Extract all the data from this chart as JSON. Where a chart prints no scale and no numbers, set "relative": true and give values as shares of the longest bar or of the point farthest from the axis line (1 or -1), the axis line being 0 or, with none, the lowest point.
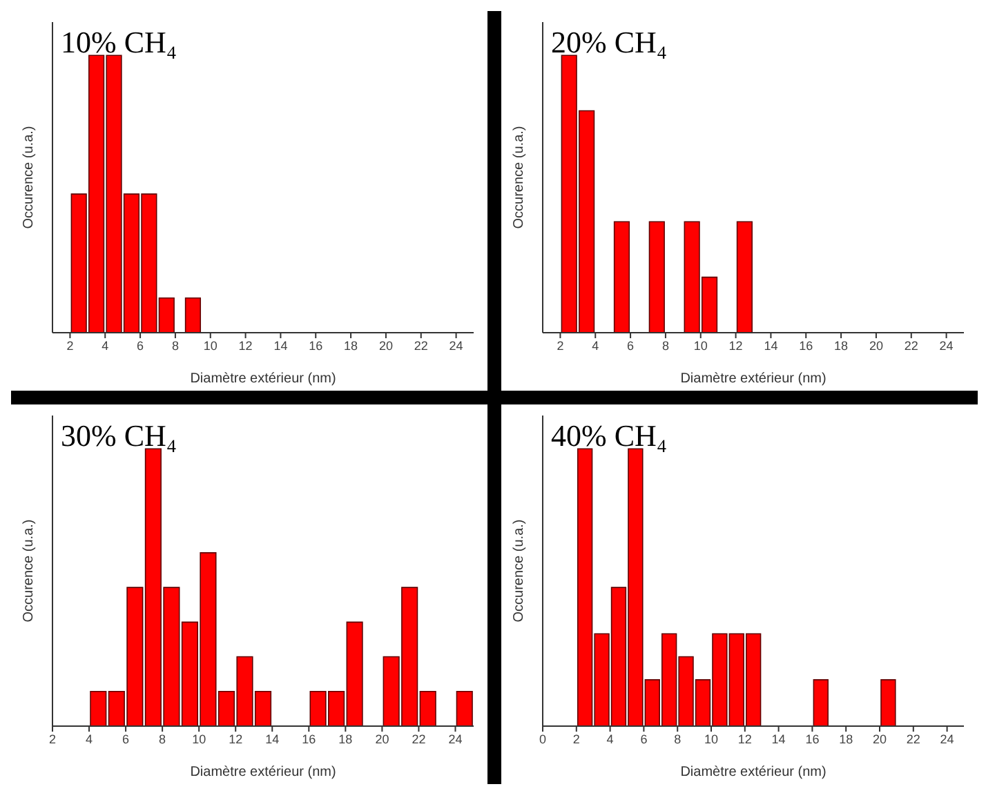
{
  "chart_data": [
    {
      "type": "bar",
      "title": "10% CH₄",
      "xlabel": "Diamètre extérieur (nm)",
      "ylabel": "Occurence (u.a.)",
      "relative": true,
      "x": [
        2.5,
        3.5,
        4.5,
        5.5,
        6.5,
        7.5,
        9
      ],
      "values": [
        0.5,
        1,
        1,
        0.5,
        0.5,
        0.125,
        0.125
      ],
      "color": "#ff0000",
      "xlim": [
        1,
        25
      ],
      "xticks": [
        2,
        4,
        6,
        8,
        10,
        12,
        14,
        16,
        18,
        20,
        22,
        24
      ],
      "grid": false,
      "legend": false
    },
    {
      "type": "bar",
      "title": "20% CH₄",
      "xlabel": "Diamètre extérieur (nm)",
      "ylabel": "Occurence (u.a.)",
      "relative": true,
      "x": [
        2.5,
        3.5,
        5.5,
        7.5,
        9.5,
        10.5,
        12.5
      ],
      "values": [
        1,
        0.8,
        0.4,
        0.4,
        0.4,
        0.2,
        0.4
      ],
      "color": "#ff0000",
      "xlim": [
        1,
        25
      ],
      "xticks": [
        2,
        4,
        6,
        8,
        10,
        12,
        14,
        16,
        18,
        20,
        22,
        24
      ],
      "grid": false,
      "legend": false
    },
    {
      "type": "bar",
      "title": "30% CH₄",
      "xlabel": "Diamètre extérieur (nm)",
      "ylabel": "Occurence (u.a.)",
      "relative": true,
      "x": [
        4.5,
        5.5,
        6.5,
        7.5,
        8.5,
        9.5,
        10.5,
        11.5,
        12.5,
        13.5,
        16.5,
        17.5,
        18.5,
        20.5,
        21.5,
        22.5,
        24.5
      ],
      "values": [
        0.125,
        0.125,
        0.5,
        1,
        0.5,
        0.375,
        0.625,
        0.125,
        0.25,
        0.125,
        0.125,
        0.125,
        0.375,
        0.25,
        0.5,
        0.125,
        0.125
      ],
      "color": "#ff0000",
      "xlim": [
        2,
        25
      ],
      "xticks": [
        2,
        4,
        6,
        8,
        10,
        12,
        14,
        16,
        18,
        20,
        22,
        24
      ],
      "grid": false,
      "legend": false
    },
    {
      "type": "bar",
      "title": "40% CH₄",
      "xlabel": "Diamètre extérieur (nm)",
      "ylabel": "Occurence (u.a.)",
      "relative": true,
      "x": [
        2.5,
        3.5,
        4.5,
        5.5,
        6.5,
        7.5,
        8.5,
        9.5,
        10.5,
        11.5,
        12.5,
        16.5,
        20.5
      ],
      "values": [
        1,
        0.333,
        0.5,
        1,
        0.167,
        0.333,
        0.25,
        0.167,
        0.333,
        0.333,
        0.333,
        0.167,
        0.167
      ],
      "color": "#ff0000",
      "xlim": [
        0,
        25
      ],
      "xticks": [
        0,
        2,
        4,
        6,
        8,
        10,
        12,
        14,
        16,
        18,
        20,
        22,
        24
      ],
      "grid": false,
      "legend": false
    }
  ]
}
